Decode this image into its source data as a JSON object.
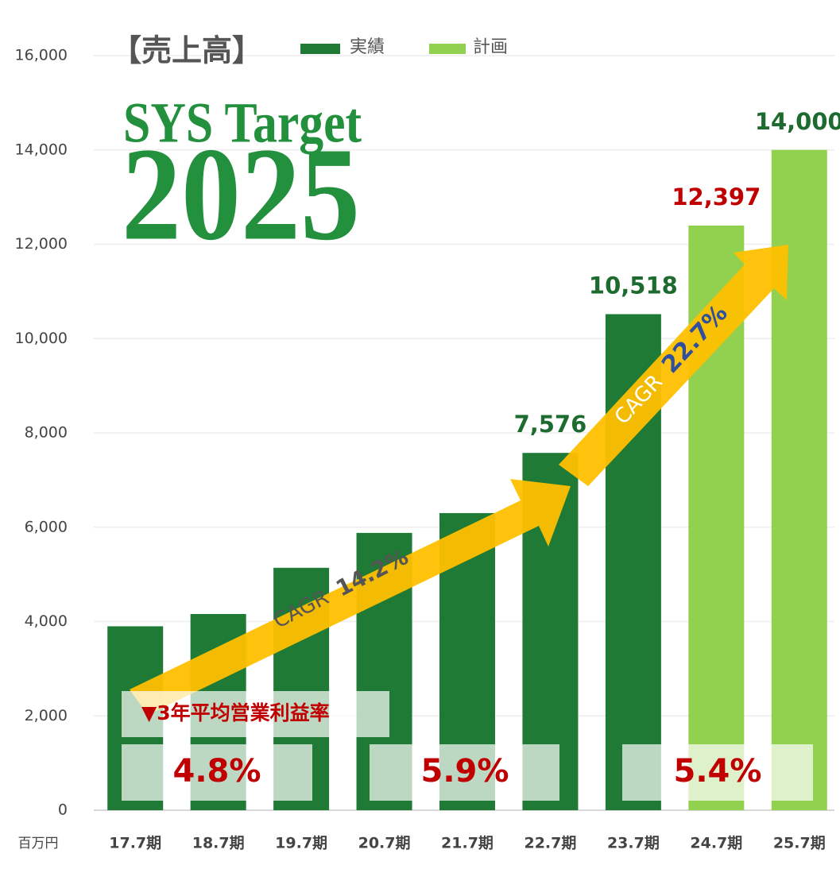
{
  "chart_data": {
    "type": "bar",
    "title": "【売上高】",
    "unit_label": "百万円",
    "categories": [
      "17.7期",
      "18.7期",
      "19.7期",
      "20.7期",
      "21.7期",
      "22.7期",
      "23.7期",
      "24.7期",
      "25.7期"
    ],
    "series": [
      {
        "name": "実績",
        "color": "#1e7a34",
        "values": [
          3900,
          4160,
          5140,
          5880,
          6300,
          7576,
          10518,
          null,
          null
        ],
        "value_labels": [
          null,
          null,
          null,
          null,
          null,
          "7,576",
          "10,518",
          null,
          null
        ],
        "value_label_colors": [
          null,
          null,
          null,
          null,
          null,
          "#1e6b30",
          "#1e6b30",
          null,
          null
        ]
      },
      {
        "name": "計画",
        "color": "#92d050",
        "values": [
          null,
          null,
          null,
          null,
          null,
          null,
          null,
          12397,
          14000
        ],
        "value_labels": [
          null,
          null,
          null,
          null,
          null,
          null,
          null,
          "12,397",
          "14,000"
        ],
        "value_label_colors": [
          null,
          null,
          null,
          null,
          null,
          null,
          null,
          "#c00000",
          "#1e6b30"
        ]
      }
    ],
    "ylim": [
      0,
      16000
    ],
    "yticks": [
      0,
      {
        "value": 2000,
        "label": "2,000"
      },
      {
        "value": 4000,
        "label": "4,000"
      },
      {
        "value": 6000,
        "label": "6,000"
      },
      {
        "value": 8000,
        "label": "8,000"
      },
      {
        "value": 10000,
        "label": "10,000"
      },
      {
        "value": 12000,
        "label": "12,000"
      },
      {
        "value": 14000,
        "label": "14,000"
      },
      {
        "value": 16000,
        "label": "16,000"
      }
    ],
    "grid": true,
    "legend": "top",
    "annotations": {
      "logo_line1": "SYS Target",
      "logo_line2": "2025",
      "cagr1_label": "CAGR",
      "cagr1_value": "14.2%",
      "cagr2_label": "CAGR",
      "cagr2_value": "22.7%",
      "margin_title": "▼3年平均営業利益率",
      "margins": [
        "4.8%",
        "5.9%",
        "5.4%"
      ]
    }
  }
}
